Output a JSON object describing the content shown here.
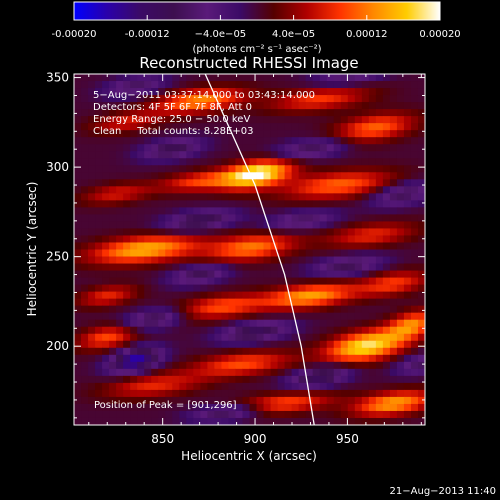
{
  "chart_data": {
    "type": "heatmap",
    "title": "Reconstructed RHESSI Image",
    "xlabel": "Heliocentric X (arcsec)",
    "ylabel": "Heliocentric Y (arcsec)",
    "xlim": [
      802,
      992
    ],
    "ylim": [
      156,
      352
    ],
    "x_ticks": [
      850,
      900,
      950
    ],
    "y_ticks": [
      200,
      250,
      300,
      350
    ],
    "x_tick_labels": [
      "850",
      "900",
      "950"
    ],
    "y_tick_labels": [
      "200",
      "250",
      "300",
      "350"
    ],
    "colorbar": {
      "range": [
        -0.0002,
        0.0002
      ],
      "tick_values": [
        -0.0002,
        -0.00012,
        -4e-05,
        4e-05,
        0.00012,
        0.0002
      ],
      "tick_labels": [
        "-0.00020",
        "-0.00012",
        "−4.0e−05",
        "4.0e−05",
        "0.00012",
        "0.00020"
      ],
      "units": "(photons cm⁻² s⁻¹ asec⁻²)",
      "colors": [
        "#0000ff",
        "#2a00aa",
        "#3b0a66",
        "#3d0f4f",
        "#5a1a7a",
        "#3b0a66",
        "#550000",
        "#b00000",
        "#ff3300",
        "#ff8800",
        "#ffcc00",
        "#ffffff"
      ]
    },
    "annotations": [
      "5−Aug−2011 03:37:14.000 to 03:43:14.000",
      "Detectors: 4F 5F 6F 7F 8F, Att 0",
      "Energy Range: 25.0 − 50.0 keV",
      "Clean     Total counts: 8.28E+03"
    ],
    "peak_label": "Position of Peak = [901,296]",
    "peak": {
      "x": 901,
      "y": 296
    },
    "limb_curve": [
      [
        873,
        352
      ],
      [
        900,
        290
      ],
      [
        916,
        240
      ],
      [
        925,
        200
      ],
      [
        932,
        156
      ]
    ],
    "blobs": [
      {
        "x": 901,
        "y": 296,
        "v": 1.0,
        "sx": 14,
        "sy": 8
      },
      {
        "x": 870,
        "y": 337,
        "v": 0.65,
        "sx": 18,
        "sy": 7
      },
      {
        "x": 935,
        "y": 338,
        "v": 0.45,
        "sx": 20,
        "sy": 7
      },
      {
        "x": 965,
        "y": 322,
        "v": 0.55,
        "sx": 16,
        "sy": 8
      },
      {
        "x": 830,
        "y": 325,
        "v": 0.35,
        "sx": 14,
        "sy": 6
      },
      {
        "x": 870,
        "y": 292,
        "v": 0.45,
        "sx": 16,
        "sy": 6
      },
      {
        "x": 945,
        "y": 290,
        "v": 0.55,
        "sx": 22,
        "sy": 8
      },
      {
        "x": 825,
        "y": 285,
        "v": 0.35,
        "sx": 14,
        "sy": 6
      },
      {
        "x": 840,
        "y": 254,
        "v": 0.75,
        "sx": 22,
        "sy": 8
      },
      {
        "x": 898,
        "y": 255,
        "v": 0.6,
        "sx": 18,
        "sy": 8
      },
      {
        "x": 963,
        "y": 262,
        "v": 0.4,
        "sx": 18,
        "sy": 7
      },
      {
        "x": 820,
        "y": 228,
        "v": 0.4,
        "sx": 12,
        "sy": 6
      },
      {
        "x": 882,
        "y": 222,
        "v": 0.5,
        "sx": 18,
        "sy": 7
      },
      {
        "x": 930,
        "y": 228,
        "v": 0.7,
        "sx": 18,
        "sy": 7
      },
      {
        "x": 975,
        "y": 235,
        "v": 0.45,
        "sx": 14,
        "sy": 7
      },
      {
        "x": 960,
        "y": 200,
        "v": 0.9,
        "sx": 16,
        "sy": 9
      },
      {
        "x": 985,
        "y": 212,
        "v": 0.6,
        "sx": 10,
        "sy": 8
      },
      {
        "x": 820,
        "y": 205,
        "v": 0.5,
        "sx": 12,
        "sy": 7
      },
      {
        "x": 893,
        "y": 190,
        "v": 0.5,
        "sx": 20,
        "sy": 7
      },
      {
        "x": 845,
        "y": 178,
        "v": 0.4,
        "sx": 20,
        "sy": 7
      },
      {
        "x": 915,
        "y": 168,
        "v": 0.5,
        "sx": 20,
        "sy": 6
      },
      {
        "x": 975,
        "y": 168,
        "v": 0.7,
        "sx": 16,
        "sy": 7
      },
      {
        "x": 870,
        "y": 270,
        "v": -0.55,
        "sx": 14,
        "sy": 6
      },
      {
        "x": 855,
        "y": 310,
        "v": -0.5,
        "sx": 12,
        "sy": 6
      },
      {
        "x": 835,
        "y": 345,
        "v": -0.4,
        "sx": 12,
        "sy": 6
      },
      {
        "x": 930,
        "y": 310,
        "v": -0.45,
        "sx": 14,
        "sy": 6
      },
      {
        "x": 950,
        "y": 350,
        "v": -0.35,
        "sx": 14,
        "sy": 5
      },
      {
        "x": 980,
        "y": 285,
        "v": -0.45,
        "sx": 12,
        "sy": 7
      },
      {
        "x": 925,
        "y": 270,
        "v": -0.4,
        "sx": 14,
        "sy": 6
      },
      {
        "x": 870,
        "y": 240,
        "v": -0.45,
        "sx": 12,
        "sy": 6
      },
      {
        "x": 950,
        "y": 245,
        "v": -0.45,
        "sx": 14,
        "sy": 6
      },
      {
        "x": 835,
        "y": 192,
        "v": -0.85,
        "sx": 10,
        "sy": 7
      },
      {
        "x": 845,
        "y": 215,
        "v": -0.5,
        "sx": 12,
        "sy": 6
      },
      {
        "x": 900,
        "y": 208,
        "v": -0.55,
        "sx": 14,
        "sy": 6
      },
      {
        "x": 935,
        "y": 183,
        "v": -0.6,
        "sx": 12,
        "sy": 6
      },
      {
        "x": 885,
        "y": 163,
        "v": -0.5,
        "sx": 14,
        "sy": 5
      },
      {
        "x": 990,
        "y": 190,
        "v": -0.4,
        "sx": 10,
        "sy": 6
      }
    ]
  },
  "footer": {
    "timestamp": "21−Aug−2013 11:40"
  }
}
